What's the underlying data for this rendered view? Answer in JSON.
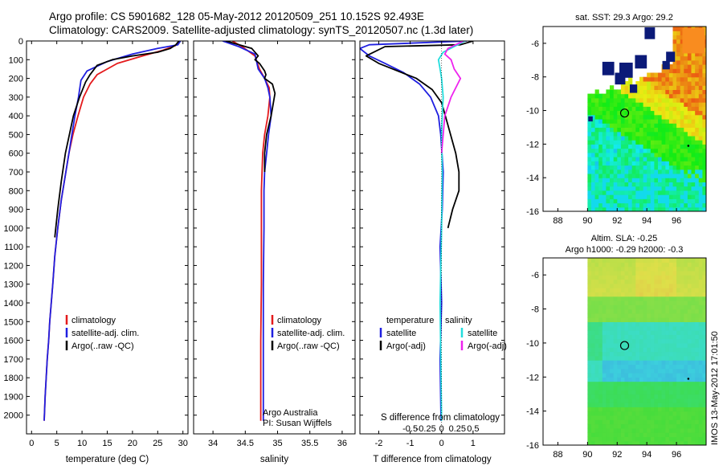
{
  "header": {
    "line1": "Argo profile: CS 5901682_128 05-May-2012 20120509_251 10.152S 92.493E",
    "line2": "Climatology: CARS2009. Satellite-adjusted climatology: synTS_20120507.nc (1.3d later)"
  },
  "timestamp": "IMOS 13-May-2012 17:01:50",
  "colors": {
    "climatology": "#e41a1c",
    "satellite": "#1f1fe0",
    "argo": "#000000",
    "sal_satellite": "#22dddd",
    "sal_argo": "#ee22ee"
  },
  "chart_data": [
    {
      "id": "temperature",
      "type": "line",
      "xlabel": "temperature (deg C)",
      "ylim": [
        2100,
        0
      ],
      "xlim": [
        -1,
        31
      ],
      "yticks": [
        0,
        100,
        200,
        300,
        400,
        500,
        600,
        700,
        800,
        900,
        1000,
        1100,
        1200,
        1300,
        1400,
        1500,
        1600,
        1700,
        1800,
        1900,
        2000
      ],
      "xticks": [
        0,
        5,
        10,
        15,
        20,
        25,
        30
      ],
      "legend": [
        "climatology",
        "satellite-adj. clim.",
        "Argo(..raw -QC)"
      ],
      "series": [
        {
          "name": "climatology",
          "x": [
            29.3,
            28.5,
            26,
            22,
            17,
            13,
            11.6,
            10.3,
            9.2,
            8.2,
            7.4,
            6.8,
            5.9,
            5.2,
            4.6,
            4.2,
            3.9,
            3.6,
            3.4,
            3.1,
            2.9,
            2.7,
            2.5
          ],
          "y": [
            0,
            25,
            50,
            80,
            120,
            180,
            230,
            300,
            400,
            500,
            600,
            700,
            850,
            1000,
            1150,
            1300,
            1400,
            1500,
            1600,
            1700,
            1800,
            1900,
            2030
          ]
        },
        {
          "name": "satellite-adj. clim.",
          "x": [
            29.5,
            29,
            25,
            20,
            15,
            11,
            9.8,
            9.3,
            8.6,
            8,
            7.4,
            6.8,
            5.9,
            5.2,
            4.6,
            4.2,
            3.9,
            3.6,
            3.4,
            3.1,
            2.9,
            2.7,
            2.5
          ],
          "y": [
            0,
            20,
            40,
            70,
            110,
            160,
            210,
            300,
            400,
            500,
            600,
            700,
            850,
            1000,
            1150,
            1300,
            1400,
            1500,
            1600,
            1700,
            1800,
            1900,
            2030
          ]
        },
        {
          "name": "Argo(..raw -QC)",
          "x": [
            29.2,
            28.6,
            27.5,
            25,
            20,
            16,
            13,
            11.6,
            10.7,
            9.5,
            8.3,
            7.5,
            6.7,
            5.9,
            5.2,
            4.6
          ],
          "y": [
            0,
            20,
            40,
            60,
            80,
            100,
            130,
            180,
            220,
            300,
            400,
            500,
            600,
            750,
            900,
            1050
          ]
        }
      ]
    },
    {
      "id": "salinity",
      "type": "line",
      "xlabel": "salinity",
      "ylim": [
        2100,
        0
      ],
      "xlim": [
        33.7,
        36.2
      ],
      "xticks": [
        34,
        34.5,
        35,
        35.5,
        36
      ],
      "legend": [
        "climatology",
        "satellite-adj. clim.",
        "Argo(..raw -QC)"
      ],
      "annotation": [
        "Argo Australia",
        "PI: Susan Wijffels"
      ],
      "series": [
        {
          "name": "climatology",
          "x": [
            34.3,
            34.45,
            34.65,
            34.72,
            34.8,
            34.87,
            34.88,
            34.85,
            34.8,
            34.77,
            34.76,
            34.75,
            34.75,
            34.75,
            34.74,
            34.74
          ],
          "y": [
            0,
            30,
            80,
            150,
            200,
            250,
            300,
            400,
            500,
            600,
            700,
            800,
            1000,
            1300,
            1600,
            2030
          ]
        },
        {
          "name": "satellite-adj. clim.",
          "x": [
            34.15,
            34.4,
            34.65,
            34.7,
            34.8,
            34.85,
            34.88,
            34.9,
            34.86,
            34.83,
            34.8,
            34.79,
            34.79,
            34.78,
            34.78,
            34.78
          ],
          "y": [
            0,
            30,
            70,
            150,
            200,
            250,
            300,
            400,
            500,
            600,
            700,
            800,
            1000,
            1300,
            1600,
            2030
          ]
        },
        {
          "name": "Argo(..raw -QC)",
          "x": [
            34.2,
            34.6,
            34.7,
            34.65,
            34.72,
            34.8,
            34.82,
            34.8,
            34.92,
            34.96,
            34.93,
            34.9,
            34.83,
            34.8,
            34.8
          ],
          "y": [
            0,
            40,
            80,
            100,
            120,
            160,
            180,
            200,
            230,
            280,
            340,
            400,
            500,
            600,
            700
          ]
        }
      ]
    },
    {
      "id": "difference",
      "type": "line",
      "xlabel": "T difference from climatology",
      "xlabel_top": "S difference from climatology",
      "ylim": [
        2100,
        0
      ],
      "xlim": [
        -2.6,
        2.0
      ],
      "xticks": [
        -2,
        -1,
        0,
        1
      ],
      "xtick_labels": [
        "-2",
        "-1",
        "0",
        "1"
      ],
      "xticks_s": [
        -1.0,
        -0.5,
        0,
        0.5,
        1.0
      ],
      "xtick_labels_s": [
        "-0.5",
        "-0.25",
        "0",
        "0.25",
        "0.5"
      ],
      "legend": {
        "temperature_title": "temperature",
        "salinity_title": "salinity",
        "temperature": [
          "satellite",
          "Argo(-adj)"
        ],
        "salinity": [
          "satellite",
          "Argo(-adj)"
        ]
      },
      "series": [
        {
          "name": "satellite",
          "x": [
            0.8,
            -2.3,
            -2.6,
            -2.3,
            -1.8,
            -1.2,
            -0.7,
            -0.35,
            -0.1,
            -0.03,
            0.05,
            0.02,
            -0.05,
            0.0,
            -0.05,
            -0.02
          ],
          "y": [
            0,
            20,
            40,
            80,
            120,
            170,
            230,
            300,
            400,
            500,
            700,
            900,
            1100,
            1400,
            1700,
            2030
          ]
        },
        {
          "name": "Argo(-adj)",
          "x": [
            1.0,
            0.6,
            -1.8,
            -2.4,
            -2.0,
            -1.4,
            -0.8,
            -0.3,
            0.0,
            0.2,
            0.45,
            0.55,
            0.55,
            0.35,
            0.2
          ],
          "y": [
            0,
            20,
            30,
            80,
            120,
            160,
            200,
            260,
            330,
            450,
            600,
            700,
            800,
            900,
            1000
          ]
        },
        {
          "name": "salinity satellite",
          "x": [
            0.75,
            0.4,
            0.05,
            -0.1,
            -0.05,
            0.0,
            0.05,
            0.02,
            0.0,
            0.02,
            0.0,
            -0.05,
            0.0
          ],
          "y": [
            0,
            30,
            60,
            100,
            150,
            200,
            300,
            400,
            500,
            700,
            1000,
            1400,
            2030
          ]
        },
        {
          "name": "salinity Argo(-adj)",
          "x": [
            0.7,
            0.2,
            0.1,
            0.3,
            0.4,
            0.6,
            0.3,
            0.1,
            0.05,
            0.0
          ],
          "y": [
            0,
            40,
            70,
            100,
            150,
            200,
            300,
            400,
            500,
            600
          ]
        }
      ]
    },
    {
      "id": "sst-map",
      "type": "heatmap",
      "title": "sat. SST: 29.3 Argo: 29.2",
      "xlim": [
        87,
        98
      ],
      "ylim": [
        -16,
        -5
      ],
      "xticks": [
        88,
        90,
        92,
        94,
        96
      ],
      "yticks": [
        -6,
        -8,
        -10,
        -12,
        -14,
        -16
      ],
      "marker": {
        "lon": 92.5,
        "lat": -10.15
      }
    },
    {
      "id": "sla-map",
      "type": "heatmap",
      "title": "Altim. SLA: -0.25",
      "subtitle": "Argo h1000: -0.29 h2000: -0.3",
      "xlim": [
        87,
        98
      ],
      "ylim": [
        -16,
        -5
      ],
      "xticks": [
        88,
        90,
        92,
        94,
        96
      ],
      "yticks": [
        -6,
        -8,
        -10,
        -12,
        -14,
        -16
      ],
      "marker": {
        "lon": 92.5,
        "lat": -10.15
      }
    }
  ]
}
